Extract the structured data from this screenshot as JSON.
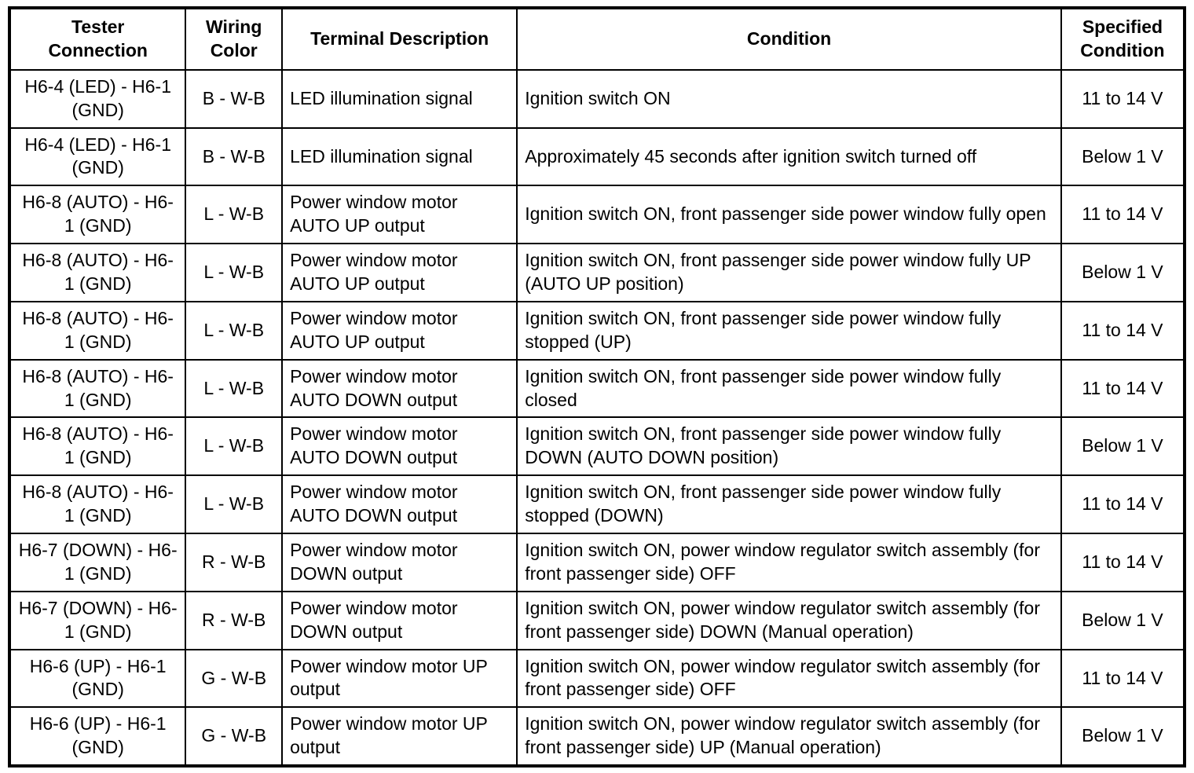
{
  "table": {
    "headers": {
      "tester": "Tester\nConnection",
      "wiring": "Wiring\nColor",
      "terminal": "Terminal Description",
      "condition": "Condition",
      "specified": "Specified\nCondition"
    },
    "rows": [
      {
        "tester": "H6-4 (LED) - H6-1 (GND)",
        "wiring": "B - W-B",
        "terminal": "LED illumination signal",
        "condition": "Ignition switch ON",
        "specified": "11 to 14 V"
      },
      {
        "tester": "H6-4 (LED) - H6-1 (GND)",
        "wiring": "B - W-B",
        "terminal": "LED illumination signal",
        "condition": "Approximately 45 seconds after ignition switch turned off",
        "specified": "Below 1 V"
      },
      {
        "tester": "H6-8 (AUTO) - H6-1 (GND)",
        "wiring": "L - W-B",
        "terminal": "Power window motor AUTO UP output",
        "condition": "Ignition switch ON, front passenger side power window fully open",
        "specified": "11 to 14 V"
      },
      {
        "tester": "H6-8 (AUTO) - H6-1 (GND)",
        "wiring": "L - W-B",
        "terminal": "Power window motor AUTO UP output",
        "condition": "Ignition switch ON, front passenger side power window fully UP (AUTO UP position)",
        "specified": "Below 1 V"
      },
      {
        "tester": "H6-8 (AUTO) - H6-1 (GND)",
        "wiring": "L - W-B",
        "terminal": "Power window motor AUTO UP output",
        "condition": "Ignition switch ON, front passenger side power window fully stopped (UP)",
        "specified": "11 to 14 V"
      },
      {
        "tester": "H6-8 (AUTO) - H6-1 (GND)",
        "wiring": "L - W-B",
        "terminal": "Power window motor AUTO DOWN output",
        "condition": "Ignition switch ON, front passenger side power window fully closed",
        "specified": "11 to 14 V"
      },
      {
        "tester": "H6-8 (AUTO) - H6-1 (GND)",
        "wiring": "L - W-B",
        "terminal": "Power window motor AUTO DOWN output",
        "condition": "Ignition switch ON, front passenger side power window fully DOWN (AUTO DOWN position)",
        "specified": "Below 1 V"
      },
      {
        "tester": "H6-8 (AUTO) - H6-1 (GND)",
        "wiring": "L - W-B",
        "terminal": "Power window motor AUTO DOWN output",
        "condition": "Ignition switch ON, front passenger side power window fully stopped (DOWN)",
        "specified": "11 to 14 V"
      },
      {
        "tester": "H6-7 (DOWN) - H6-1 (GND)",
        "wiring": "R - W-B",
        "terminal": "Power window motor DOWN output",
        "condition": "Ignition switch ON, power window regulator switch assembly (for front passenger side) OFF",
        "specified": "11 to 14 V"
      },
      {
        "tester": "H6-7 (DOWN) - H6-1 (GND)",
        "wiring": "R - W-B",
        "terminal": "Power window motor DOWN output",
        "condition": "Ignition switch ON, power window regulator switch assembly (for front passenger side) DOWN (Manual operation)",
        "specified": "Below 1 V"
      },
      {
        "tester": "H6-6 (UP) - H6-1 (GND)",
        "wiring": "G - W-B",
        "terminal": "Power window motor UP output",
        "condition": "Ignition switch ON, power window regulator switch assembly (for front passenger side) OFF",
        "specified": "11 to 14 V"
      },
      {
        "tester": "H6-6 (UP) - H6-1 (GND)",
        "wiring": "G - W-B",
        "terminal": "Power window motor UP output",
        "condition": "Ignition switch ON, power window regulator switch assembly (for front passenger side) UP (Manual operation)",
        "specified": "Below 1 V"
      }
    ]
  }
}
